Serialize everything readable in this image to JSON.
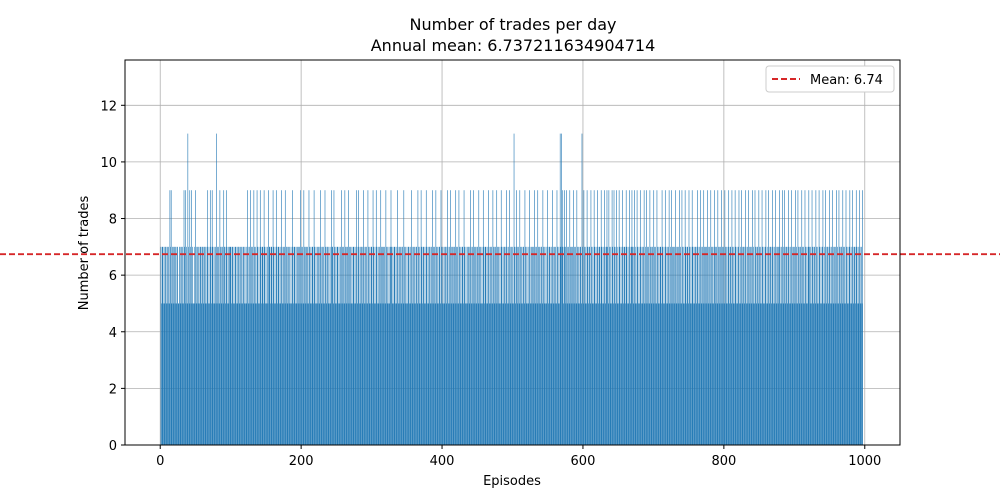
{
  "chart_data": {
    "type": "bar",
    "title": "Number of trades per day",
    "subtitle": "Annual mean: 6.737211634904714",
    "xlabel": "Episodes",
    "ylabel": "Number of trades",
    "xlim": [
      -50,
      1050
    ],
    "ylim": [
      0,
      13.6
    ],
    "xticks": [
      0,
      200,
      400,
      600,
      800,
      1000
    ],
    "yticks": [
      0,
      2,
      4,
      6,
      8,
      10,
      12
    ],
    "grid": true,
    "legend": {
      "placement": "top-right",
      "entries": [
        "Mean: 6.74"
      ]
    },
    "bar_color": "#1f77b4",
    "mean_line": {
      "value": 6.74,
      "color": "#d62728",
      "style": "dashed",
      "label": "Mean: 6.74"
    },
    "x_start": 1,
    "x_end": 997,
    "values": [
      7,
      5,
      7,
      7,
      5,
      7,
      5,
      7,
      7,
      5,
      7,
      5,
      7,
      5,
      9,
      7,
      9,
      5,
      7,
      5,
      7,
      7,
      5,
      7,
      5,
      7,
      7,
      5,
      5,
      7,
      7,
      5,
      7,
      5,
      7,
      5,
      9,
      7,
      9,
      5,
      7,
      5,
      11,
      7,
      5,
      9,
      7,
      5,
      9,
      7,
      5,
      5,
      7,
      5,
      9,
      7,
      5,
      7,
      5,
      7,
      5,
      7,
      7,
      5,
      7,
      7,
      5,
      7,
      7,
      5,
      7,
      5,
      7,
      9,
      5,
      7,
      5,
      9,
      7,
      5,
      9,
      7,
      5,
      7,
      5,
      7,
      5,
      11,
      7,
      5,
      7,
      5,
      9,
      7,
      5,
      7,
      7,
      5,
      9,
      7,
      7,
      5,
      9,
      7,
      5,
      7,
      5,
      7,
      7,
      7,
      5,
      7,
      7,
      5,
      7,
      5,
      7,
      7,
      5,
      7,
      5,
      7,
      7,
      5,
      7,
      5,
      7,
      5,
      7,
      7,
      5,
      7,
      5,
      7,
      5,
      9,
      7,
      5,
      7,
      5,
      9,
      7,
      5,
      7,
      5,
      9,
      7,
      5,
      7,
      5,
      9,
      7,
      5,
      7,
      5,
      9,
      7,
      5,
      7,
      7,
      5,
      9,
      7,
      5,
      7,
      5,
      7,
      5,
      9,
      7,
      7,
      5,
      7,
      7,
      5,
      9,
      7,
      5,
      7,
      5,
      9,
      7,
      5,
      7,
      7,
      5,
      7,
      5,
      9,
      7,
      5,
      7,
      5,
      7,
      9,
      5,
      7,
      7,
      5,
      7,
      5,
      7,
      5,
      7,
      5,
      9,
      7,
      5,
      7,
      7,
      5,
      7,
      5,
      7,
      5,
      7,
      7,
      5,
      9,
      7,
      5,
      7,
      5,
      9,
      7,
      5,
      7,
      7,
      5,
      7,
      5,
      9,
      7,
      5,
      7,
      5,
      7,
      7,
      5,
      9,
      7,
      5,
      7,
      5,
      7,
      5,
      7,
      5,
      7,
      9,
      7,
      5,
      7,
      5,
      7,
      5,
      9,
      7,
      5,
      7,
      7,
      5,
      7,
      5,
      7,
      5,
      9,
      7,
      7,
      5,
      9,
      7,
      5,
      7,
      5,
      7,
      7,
      5,
      7,
      5,
      7,
      5,
      9,
      7,
      5,
      7,
      5,
      9,
      7,
      5,
      7,
      7,
      5,
      9,
      7,
      5,
      7,
      5,
      7,
      5,
      7,
      7,
      5,
      7,
      5,
      9,
      7,
      5,
      9,
      7,
      5,
      7,
      5,
      7,
      7,
      5,
      9,
      7,
      5,
      7,
      5,
      7,
      5,
      9,
      7,
      5,
      7,
      5,
      7,
      7,
      5,
      9,
      7,
      5,
      7,
      5,
      9,
      7,
      5,
      7,
      5,
      7,
      5,
      9,
      7,
      5,
      7,
      7,
      5,
      7,
      5,
      9,
      7,
      5,
      7,
      5,
      7,
      5,
      7,
      9,
      7,
      5,
      7,
      5,
      7,
      7,
      5,
      7,
      5,
      9,
      7,
      5,
      7,
      5,
      7,
      5,
      7,
      7,
      5,
      9,
      7,
      5,
      7,
      5,
      7,
      5,
      7,
      7,
      5,
      7,
      5,
      9,
      7,
      5,
      7,
      5,
      7,
      5,
      7,
      7,
      5,
      9,
      7,
      5,
      7,
      5,
      9,
      7,
      5,
      7,
      7,
      5,
      7,
      5,
      9,
      7,
      5,
      7,
      5,
      7,
      7,
      5,
      7,
      5,
      9,
      7,
      5,
      7,
      5,
      9,
      7,
      5,
      7,
      5,
      7,
      7,
      5,
      9,
      7,
      5,
      7,
      5,
      7,
      5,
      7,
      7,
      5,
      9,
      7,
      5,
      7,
      5,
      9,
      7,
      5,
      7,
      5,
      7,
      7,
      5,
      9,
      7,
      5,
      7,
      5,
      9,
      7,
      5,
      7,
      5,
      7,
      7,
      5,
      9,
      7,
      5,
      7,
      5,
      7,
      5,
      7,
      7,
      5,
      9,
      7,
      5,
      7,
      5,
      9,
      7,
      5,
      7,
      5,
      7,
      7,
      5,
      9,
      7,
      5,
      7,
      5,
      7,
      5,
      9,
      7,
      5,
      7,
      7,
      5,
      7,
      5,
      9,
      7,
      5,
      7,
      5,
      7,
      5,
      9,
      7,
      5,
      7,
      7,
      5,
      9,
      7,
      5,
      7,
      5,
      7,
      5,
      9,
      7,
      5,
      7,
      5,
      7,
      7,
      5,
      9,
      7,
      5,
      7,
      5,
      9,
      7,
      5,
      7,
      5,
      7,
      5,
      11,
      7,
      5,
      7,
      9,
      7,
      5,
      7,
      5,
      9,
      7,
      5,
      7,
      5,
      7,
      7,
      5,
      9,
      7,
      5,
      7,
      5,
      7,
      5,
      9,
      7,
      5,
      7,
      5,
      7,
      7,
      5,
      9,
      7,
      5,
      7,
      5,
      9,
      7,
      5,
      7,
      5,
      7,
      7,
      5,
      9,
      7,
      5,
      7,
      5,
      7,
      5,
      9,
      7,
      5,
      7,
      7,
      5,
      7,
      5,
      9,
      7,
      5,
      7,
      5,
      7,
      5,
      9,
      7,
      5,
      7,
      5,
      11,
      7,
      11,
      7,
      9,
      5,
      7,
      9,
      7,
      5,
      9,
      7,
      5,
      7,
      5,
      9,
      7,
      5,
      7,
      7,
      5,
      9,
      7,
      5,
      7,
      5,
      9,
      7,
      5,
      7,
      5,
      7,
      7,
      5,
      11,
      7,
      5,
      9,
      7,
      5,
      7,
      5,
      9,
      7,
      5,
      7,
      7,
      5,
      9,
      7,
      5,
      7,
      5,
      9,
      7,
      5,
      7,
      5,
      9,
      7,
      5,
      7,
      7,
      5,
      9,
      7,
      5,
      7,
      5,
      9,
      7,
      5,
      7,
      9,
      7,
      5,
      9,
      7,
      5,
      7,
      5,
      9,
      7,
      5,
      9,
      7,
      5,
      7,
      9,
      5,
      7,
      5,
      9,
      7,
      5,
      7,
      5,
      9,
      7,
      5,
      7,
      7,
      5,
      9,
      7,
      5,
      7,
      5,
      9,
      7,
      5,
      7,
      9,
      7,
      5,
      7,
      9,
      5,
      7,
      5,
      9,
      7,
      5,
      7,
      5,
      9,
      7,
      5,
      7,
      5,
      7,
      9,
      5,
      7,
      5,
      9,
      7,
      5,
      7,
      5,
      9,
      7,
      5,
      7,
      7,
      5,
      9,
      7,
      5,
      7,
      5,
      9,
      7,
      5,
      7,
      5,
      7,
      7,
      5,
      9,
      7,
      5,
      7,
      5,
      9,
      7,
      5,
      7,
      5,
      7,
      9,
      5,
      7,
      5,
      9,
      7,
      5,
      7,
      7,
      5,
      9,
      7,
      5,
      7,
      5,
      7,
      9,
      5,
      7,
      5,
      9,
      7,
      5,
      7,
      5,
      9,
      7,
      5,
      7,
      7,
      5,
      9,
      7,
      5,
      7,
      5,
      9,
      7,
      5,
      7,
      5,
      7,
      7,
      5,
      9,
      7,
      5,
      7,
      5,
      9,
      7,
      5,
      7,
      5,
      9,
      7,
      5,
      7,
      7,
      5,
      9,
      7,
      5,
      7,
      5,
      9,
      7,
      5,
      7,
      5,
      7,
      9,
      7,
      5,
      7,
      5,
      9,
      7,
      5,
      7,
      7,
      5,
      9,
      7,
      5,
      7,
      5,
      9,
      7,
      5,
      7,
      5,
      7,
      9,
      5,
      7,
      7,
      5,
      9,
      7,
      5,
      7,
      5,
      9,
      7,
      5,
      7,
      5,
      7,
      9,
      5,
      7,
      5,
      9,
      7,
      5,
      7,
      7,
      5,
      9,
      7,
      5,
      7,
      5,
      9,
      7,
      5,
      7,
      5,
      7,
      9,
      5,
      7,
      5,
      9,
      7,
      5,
      7,
      7,
      5,
      9,
      7,
      5,
      7,
      5,
      9,
      7,
      5,
      7,
      5,
      7,
      9,
      5,
      7,
      5,
      9,
      7,
      5,
      7,
      7,
      5,
      9,
      7,
      5,
      7,
      5,
      9,
      7,
      5,
      7,
      5,
      7,
      9,
      7,
      5,
      7,
      5,
      9,
      7,
      5,
      9,
      7,
      5,
      7,
      7,
      5,
      9,
      7,
      5,
      7,
      5,
      9,
      7,
      5,
      7,
      5,
      7,
      9,
      5,
      7,
      5,
      9,
      7,
      5,
      7,
      7,
      5,
      9,
      7,
      5,
      7,
      5,
      9,
      7,
      5,
      7,
      5,
      7,
      9,
      7,
      5,
      7,
      5,
      9,
      7,
      5,
      7,
      7,
      5,
      9,
      7,
      5,
      7,
      5,
      9,
      7,
      5,
      7,
      5,
      7,
      9,
      5,
      7,
      5,
      9,
      7,
      5,
      7,
      7,
      5,
      9,
      7,
      5,
      7,
      5,
      9,
      7,
      5,
      7,
      5,
      7,
      9,
      5,
      7,
      5,
      9,
      7,
      5,
      7,
      7,
      5,
      9,
      7,
      5,
      7,
      5,
      9,
      7,
      5,
      7,
      5,
      7,
      9,
      5,
      7,
      5,
      9,
      7,
      5,
      7,
      7,
      5,
      9,
      7,
      5,
      7,
      5,
      9,
      7,
      5,
      7,
      5,
      9
    ]
  }
}
